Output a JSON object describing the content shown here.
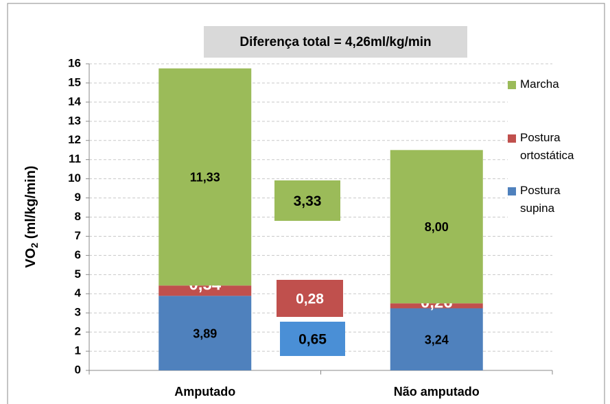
{
  "chart_data": {
    "type": "bar",
    "stacked": true,
    "title": "Diferença total = 4,26ml/kg/min",
    "ylabel": [
      "VO",
      "2",
      " (ml/kg/min)"
    ],
    "categories": [
      "Amputado",
      "Não amputado"
    ],
    "series": [
      {
        "name": "Postura supina",
        "color": "#4f81bd",
        "values": [
          3.89,
          3.24
        ],
        "value_labels": [
          "3,89",
          "3,24"
        ]
      },
      {
        "name": "Postura ortostática",
        "color": "#c0504d",
        "values": [
          0.54,
          0.26
        ],
        "value_labels": [
          "0,54",
          "0,26"
        ]
      },
      {
        "name": "Marcha",
        "color": "#9bbb59",
        "values": [
          11.33,
          8.0
        ],
        "value_labels": [
          "11,33",
          "8,00"
        ]
      }
    ],
    "differences": [
      {
        "value": 3.33,
        "label": "3,33",
        "color": "#9bbb59"
      },
      {
        "value": 0.28,
        "label": "0,28",
        "color": "#c0504d"
      },
      {
        "value": 0.65,
        "label": "0,65",
        "color": "#4a8fd6"
      }
    ],
    "ylim": [
      0,
      16
    ],
    "yticks": [
      0,
      1,
      2,
      3,
      4,
      5,
      6,
      7,
      8,
      9,
      10,
      11,
      12,
      13,
      14,
      15,
      16
    ],
    "grid": true,
    "legend": "right"
  }
}
